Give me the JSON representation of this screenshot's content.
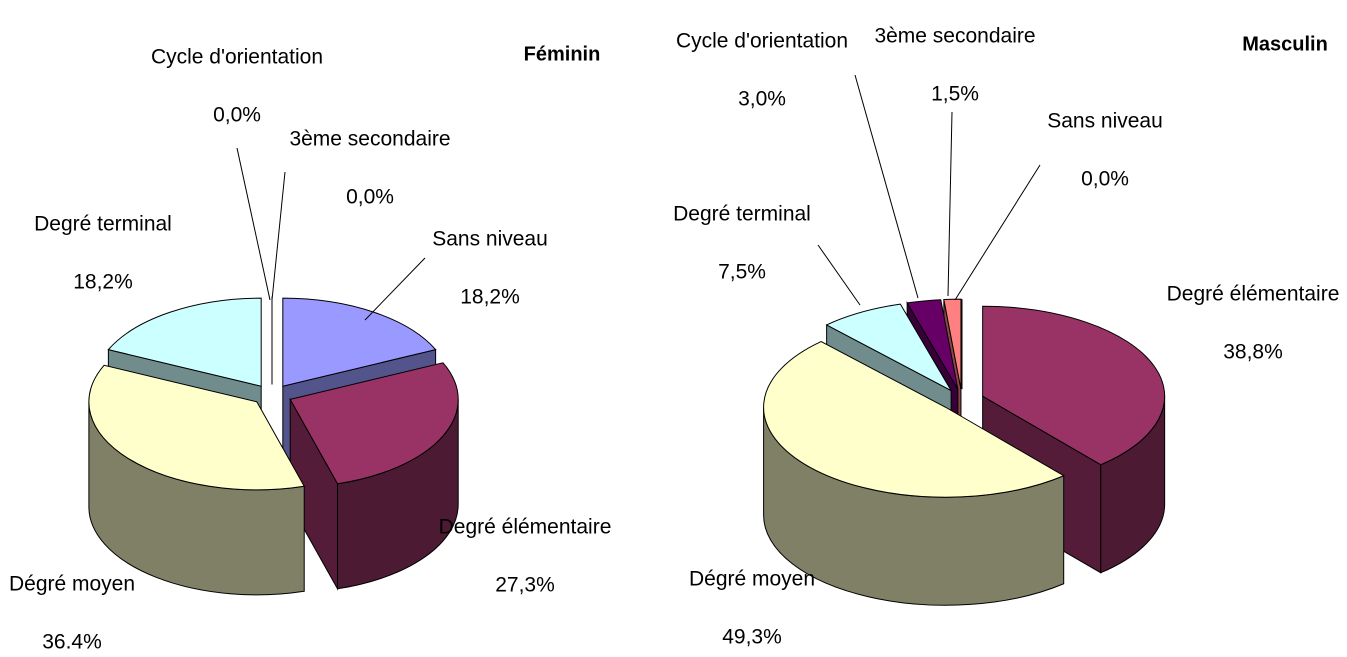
{
  "chart_data": [
    {
      "type": "pie",
      "title": "Féminin",
      "categories": [
        "Sans niveau",
        "Degré élémentaire",
        "Dégré moyen",
        "Degré terminal",
        "Cycle d'orientation",
        "3ème secondaire"
      ],
      "values": [
        18.2,
        27.3,
        36.4,
        18.2,
        0.0,
        0.0
      ],
      "value_labels": [
        "18,2%",
        "27,3%",
        "36.4%",
        "18,2%",
        "0,0%",
        "0,0%"
      ],
      "colors": [
        "#9999ff",
        "#993366",
        "#ffffcc",
        "#ccffff",
        "#660066",
        "#ff8080"
      ]
    },
    {
      "type": "pie",
      "title": "Masculin",
      "categories": [
        "Sans niveau",
        "Degré élémentaire",
        "Dégré moyen",
        "Degré terminal",
        "Cycle d'orientation",
        "3ème secondaire"
      ],
      "values": [
        0.0,
        38.8,
        49.3,
        7.5,
        3.0,
        1.5
      ],
      "value_labels": [
        "0,0%",
        "38,8%",
        "49,3%",
        "7,5%",
        "3,0%",
        "1,5%"
      ],
      "colors": [
        "#9999ff",
        "#993366",
        "#ffffcc",
        "#ccffff",
        "#660066",
        "#ff8080"
      ]
    }
  ]
}
